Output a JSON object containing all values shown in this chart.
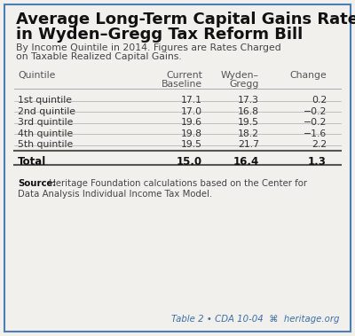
{
  "title_line1": "Average Long-Term Capital Gains Rates",
  "title_line2": "in Wyden–Gregg Tax Reform Bill",
  "subtitle_line1": "By Income Quintile in 2014. Figures are Rates Charged",
  "subtitle_line2": "on Taxable Realized Capital Gains.",
  "col_header_line1": [
    "Quintile",
    "Current",
    "Wyden–",
    "Change"
  ],
  "col_header_line2": [
    "",
    "Baseline",
    "Gregg",
    ""
  ],
  "rows": [
    [
      "1st quintile",
      "17.1",
      "17.3",
      "0.2"
    ],
    [
      "2nd quintile",
      "17.0",
      "16.8",
      "−0.2"
    ],
    [
      "3rd quintile",
      "19.6",
      "19.5",
      "−0.2"
    ],
    [
      "4th quintile",
      "19.8",
      "18.2",
      "−1.6"
    ],
    [
      "5th quintile",
      "19.5",
      "21.7",
      "2.2"
    ]
  ],
  "total_row": [
    "Total",
    "15.0",
    "16.4",
    "1.3"
  ],
  "source_bold": "Source:",
  "source_rest": " Heritage Foundation calculations based on the Center for",
  "source_line2": "Data Analysis Individual Income Tax Model.",
  "footer_text": "Table 2 • CDA 10-04  🕊  heritage.org",
  "bg_color": "#f2f0ed",
  "title_color": "#111111",
  "header_color": "#555555",
  "data_color": "#333333",
  "footer_color": "#3a6fa8",
  "line_color": "#aaaaaa",
  "line_color_thick": "#555555",
  "border_color": "#4a7eb5"
}
